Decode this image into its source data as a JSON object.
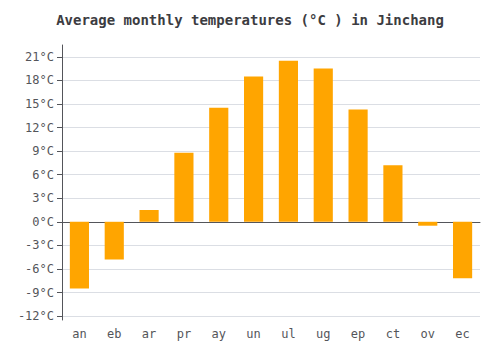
{
  "chart_data": {
    "type": "bar",
    "title": "Average monthly temperatures (°C ) in Jinchang",
    "categories": [
      "an",
      "eb",
      "ar",
      "pr",
      "ay",
      "un",
      "ul",
      "ug",
      "ep",
      "ct",
      "ov",
      "ec"
    ],
    "values": [
      -8.5,
      -4.8,
      1.5,
      8.8,
      14.5,
      18.5,
      20.5,
      19.5,
      14.3,
      7.2,
      -0.5,
      -7.2
    ],
    "color": "#FFA500",
    "ylim": [
      -12.5,
      22.5
    ],
    "yticks": [
      {
        "value": -12,
        "label": "-12°C"
      },
      {
        "value": -9,
        "label": "-9°C"
      },
      {
        "value": -6,
        "label": "-6°C"
      },
      {
        "value": -3,
        "label": "-3°C"
      },
      {
        "value": 0,
        "label": "0°C"
      },
      {
        "value": 3,
        "label": "3°C"
      },
      {
        "value": 6,
        "label": "6°C"
      },
      {
        "value": 9,
        "label": "9°C"
      },
      {
        "value": 12,
        "label": "12°C"
      },
      {
        "value": 15,
        "label": "15°C"
      },
      {
        "value": 18,
        "label": "18°C"
      },
      {
        "value": 21,
        "label": "21°C"
      }
    ],
    "grid": true
  }
}
